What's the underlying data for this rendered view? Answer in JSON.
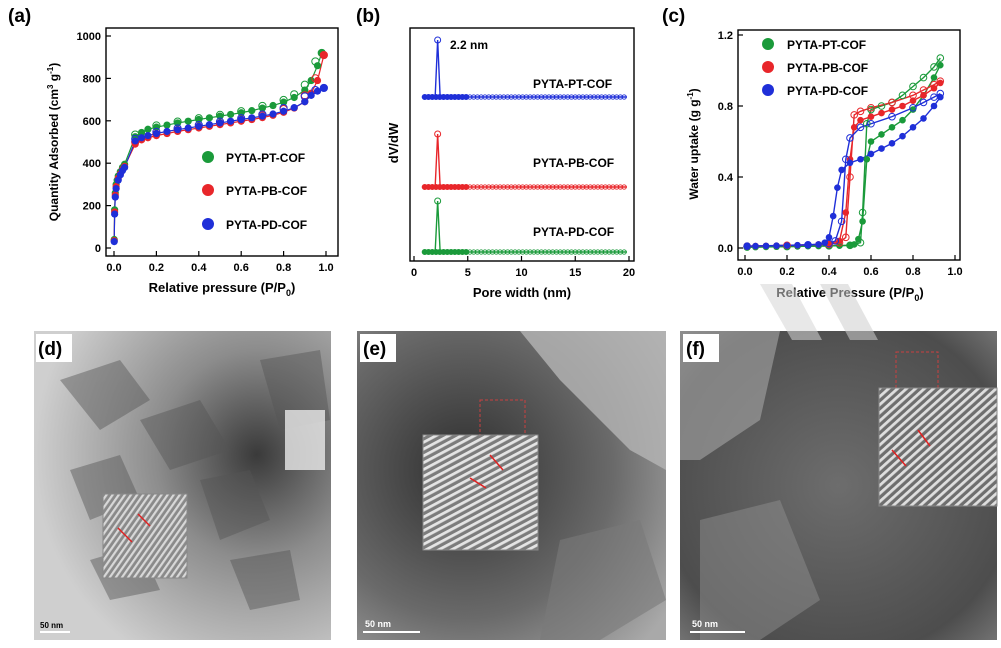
{
  "panels": {
    "a": "(a)",
    "b": "(b)",
    "c": "(c)",
    "d": "(d)",
    "e": "(e)",
    "f": "(f)"
  },
  "colors": {
    "pt": "#1a9a3a",
    "pb": "#e8262a",
    "pd": "#1f2fd8",
    "wm": "#cfcfcf"
  },
  "watermark_icon": "chevron-watermark-icon",
  "scale_bars": {
    "d": "50 nm",
    "e": "50 nm",
    "f": "50 nm"
  },
  "chart_data": [
    {
      "type": "scatter",
      "xlabel": "Relative pressure (P/P",
      "xlabel_sub": "0",
      "xlabel_end": ")",
      "ylabel": "Quantity Adsorbed (cm",
      "ylabel_sup": "3",
      "ylabel_mid": " g",
      "ylabel_sup2": "-1",
      "ylabel_end": ")",
      "xlim": [
        0,
        1.0
      ],
      "ylim": [
        0,
        1000
      ],
      "xticks": [
        "0.0",
        "0.2",
        "0.4",
        "0.6",
        "0.8",
        "1.0"
      ],
      "xtick_values": [
        0,
        0.2,
        0.4,
        0.6,
        0.8,
        1.0
      ],
      "yticks": [
        "0",
        "200",
        "400",
        "600",
        "800",
        "1000"
      ],
      "ytick_values": [
        0,
        200,
        400,
        600,
        800,
        1000
      ],
      "legend": [
        "PYTA-PT-COF",
        "PYTA-PB-COF",
        "PYTA-PD-COF"
      ],
      "series": [
        {
          "name": "PYTA-PT-COF",
          "x": [
            0.001,
            0.003,
            0.006,
            0.01,
            0.015,
            0.02,
            0.03,
            0.04,
            0.05,
            0.1,
            0.13,
            0.16,
            0.2,
            0.25,
            0.3,
            0.35,
            0.4,
            0.45,
            0.5,
            0.55,
            0.6,
            0.65,
            0.7,
            0.75,
            0.8,
            0.85,
            0.9,
            0.93,
            0.96,
            0.98
          ],
          "y": [
            40,
            180,
            260,
            300,
            320,
            340,
            360,
            380,
            395,
            525,
            545,
            560,
            570,
            580,
            590,
            598,
            606,
            614,
            622,
            630,
            638,
            648,
            660,
            672,
            688,
            710,
            745,
            790,
            860,
            920
          ],
          "desorption_x": [
            0.98,
            0.95,
            0.9,
            0.85,
            0.8,
            0.7,
            0.6,
            0.5,
            0.4,
            0.3,
            0.2,
            0.1
          ],
          "desorption_y": [
            920,
            880,
            770,
            725,
            698,
            670,
            645,
            628,
            612,
            596,
            578,
            535
          ]
        },
        {
          "name": "PYTA-PB-COF",
          "x": [
            0.001,
            0.003,
            0.006,
            0.01,
            0.02,
            0.03,
            0.04,
            0.05,
            0.1,
            0.13,
            0.16,
            0.2,
            0.25,
            0.3,
            0.35,
            0.4,
            0.45,
            0.5,
            0.55,
            0.6,
            0.65,
            0.7,
            0.75,
            0.8,
            0.85,
            0.9,
            0.93,
            0.96,
            0.99
          ],
          "y": [
            35,
            170,
            250,
            290,
            330,
            350,
            370,
            385,
            490,
            510,
            520,
            530,
            540,
            550,
            558,
            566,
            574,
            582,
            590,
            598,
            606,
            615,
            626,
            640,
            660,
            690,
            730,
            790,
            910
          ],
          "desorption_x": [
            0.99,
            0.95,
            0.9,
            0.8,
            0.7,
            0.6,
            0.5,
            0.4,
            0.3,
            0.2,
            0.1
          ],
          "desorption_y": [
            910,
            800,
            720,
            655,
            625,
            605,
            588,
            572,
            556,
            538,
            500
          ]
        },
        {
          "name": "PYTA-PD-COF",
          "x": [
            0.001,
            0.003,
            0.006,
            0.01,
            0.02,
            0.03,
            0.04,
            0.05,
            0.1,
            0.13,
            0.16,
            0.2,
            0.25,
            0.3,
            0.35,
            0.4,
            0.45,
            0.5,
            0.55,
            0.6,
            0.65,
            0.7,
            0.75,
            0.8,
            0.85,
            0.9,
            0.93,
            0.96,
            0.99
          ],
          "y": [
            30,
            160,
            240,
            280,
            320,
            345,
            365,
            380,
            505,
            520,
            530,
            540,
            550,
            558,
            566,
            574,
            582,
            590,
            598,
            606,
            614,
            622,
            632,
            645,
            662,
            690,
            720,
            740,
            755
          ],
          "desorption_x": [
            0.99,
            0.95,
            0.9,
            0.8,
            0.7,
            0.6,
            0.5,
            0.4,
            0.3,
            0.2,
            0.1
          ],
          "desorption_y": [
            755,
            745,
            715,
            660,
            630,
            612,
            596,
            580,
            564,
            548,
            515
          ]
        }
      ]
    },
    {
      "type": "line",
      "xlabel": "Pore width (nm)",
      "ylabel": "dV/dW",
      "xlim": [
        0,
        20
      ],
      "xticks": [
        "0",
        "5",
        "10",
        "15",
        "20"
      ],
      "xtick_values": [
        0,
        5,
        10,
        15,
        20
      ],
      "annotation": "2.2 nm",
      "series": [
        {
          "name": "PYTA-PT-COF",
          "peak_x": 2.2,
          "x_start": 1.0,
          "x_end": 19.8
        },
        {
          "name": "PYTA-PB-COF",
          "peak_x": 2.2,
          "x_start": 1.0,
          "x_end": 19.8
        },
        {
          "name": "PYTA-PD-COF",
          "peak_x": 2.2,
          "x_start": 1.0,
          "x_end": 19.8
        }
      ]
    },
    {
      "type": "line",
      "xlabel": "Relative Pressure (P/P",
      "xlabel_sub": "0",
      "xlabel_end": ")",
      "ylabel": "Water uptake (g g",
      "ylabel_sup": "-1",
      "ylabel_end": ")",
      "xlim": [
        0,
        1.0
      ],
      "ylim": [
        0,
        1.2
      ],
      "xticks": [
        "0.0",
        "0.2",
        "0.4",
        "0.6",
        "0.8",
        "1.0"
      ],
      "xtick_values": [
        0,
        0.2,
        0.4,
        0.6,
        0.8,
        1.0
      ],
      "yticks": [
        "0.0",
        "0.4",
        "0.8",
        "1.2"
      ],
      "ytick_values": [
        0,
        0.4,
        0.8,
        1.2
      ],
      "legend": [
        "PYTA-PT-COF",
        "PYTA-PB-COF",
        "PYTA-PD-COF"
      ],
      "series": [
        {
          "name": "PYTA-PT-COF",
          "adsorption_x": [
            0.01,
            0.05,
            0.1,
            0.15,
            0.2,
            0.25,
            0.3,
            0.35,
            0.4,
            0.45,
            0.5,
            0.52,
            0.54,
            0.56,
            0.58,
            0.6,
            0.65,
            0.7,
            0.75,
            0.8,
            0.85,
            0.9,
            0.93
          ],
          "adsorption_y": [
            0.005,
            0.005,
            0.006,
            0.007,
            0.008,
            0.009,
            0.01,
            0.011,
            0.012,
            0.013,
            0.015,
            0.02,
            0.05,
            0.15,
            0.5,
            0.6,
            0.64,
            0.68,
            0.72,
            0.78,
            0.86,
            0.96,
            1.03
          ],
          "desorption_x": [
            0.93,
            0.9,
            0.85,
            0.8,
            0.75,
            0.7,
            0.65,
            0.6,
            0.58,
            0.56,
            0.55,
            0.5,
            0.4,
            0.2,
            0.01
          ],
          "desorption_y": [
            1.07,
            1.02,
            0.96,
            0.91,
            0.86,
            0.82,
            0.8,
            0.78,
            0.7,
            0.2,
            0.03,
            0.015,
            0.012,
            0.008,
            0.005
          ]
        },
        {
          "name": "PYTA-PB-COF",
          "adsorption_x": [
            0.01,
            0.05,
            0.1,
            0.15,
            0.2,
            0.25,
            0.3,
            0.35,
            0.4,
            0.45,
            0.48,
            0.5,
            0.52,
            0.55,
            0.6,
            0.65,
            0.7,
            0.75,
            0.8,
            0.85,
            0.9,
            0.93
          ],
          "adsorption_y": [
            0.01,
            0.011,
            0.012,
            0.013,
            0.014,
            0.015,
            0.017,
            0.02,
            0.025,
            0.04,
            0.2,
            0.5,
            0.68,
            0.72,
            0.74,
            0.76,
            0.78,
            0.8,
            0.83,
            0.86,
            0.9,
            0.93
          ],
          "desorption_x": [
            0.93,
            0.9,
            0.85,
            0.8,
            0.7,
            0.6,
            0.55,
            0.52,
            0.5,
            0.48,
            0.45,
            0.4,
            0.2,
            0.01
          ],
          "desorption_y": [
            0.94,
            0.92,
            0.89,
            0.86,
            0.82,
            0.79,
            0.77,
            0.75,
            0.4,
            0.06,
            0.03,
            0.02,
            0.015,
            0.01
          ]
        },
        {
          "name": "PYTA-PD-COF",
          "adsorption_x": [
            0.01,
            0.05,
            0.1,
            0.15,
            0.2,
            0.25,
            0.3,
            0.35,
            0.38,
            0.4,
            0.42,
            0.44,
            0.46,
            0.5,
            0.55,
            0.6,
            0.65,
            0.7,
            0.75,
            0.8,
            0.85,
            0.9,
            0.93
          ],
          "adsorption_y": [
            0.01,
            0.011,
            0.012,
            0.013,
            0.014,
            0.016,
            0.018,
            0.02,
            0.03,
            0.06,
            0.18,
            0.34,
            0.44,
            0.48,
            0.5,
            0.53,
            0.56,
            0.59,
            0.63,
            0.68,
            0.73,
            0.8,
            0.85
          ],
          "desorption_x": [
            0.93,
            0.9,
            0.85,
            0.8,
            0.7,
            0.6,
            0.55,
            0.5,
            0.48,
            0.46,
            0.43,
            0.4,
            0.3,
            0.01
          ],
          "desorption_y": [
            0.87,
            0.85,
            0.82,
            0.79,
            0.74,
            0.7,
            0.68,
            0.62,
            0.5,
            0.15,
            0.04,
            0.025,
            0.018,
            0.01
          ]
        }
      ]
    }
  ]
}
